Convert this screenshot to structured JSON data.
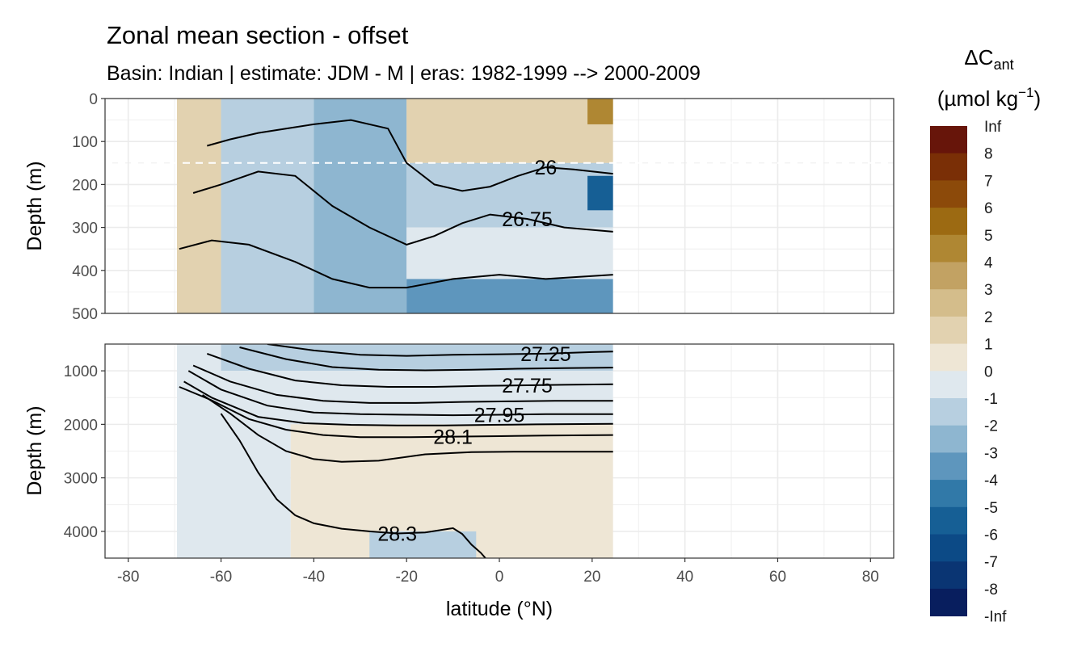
{
  "chart_data": {
    "type": "heatmap",
    "title": "Zonal mean section - offset",
    "subtitle": "Basin: Indian | estimate: JDM - M | eras: 1982-1999 --> 2000-2009",
    "xlabel": "latitude (°N)",
    "ylabel": "Depth (m)",
    "xlim": [
      -85,
      85
    ],
    "x_ticks": [
      -80,
      -60,
      -40,
      -20,
      0,
      20,
      40,
      60,
      80
    ],
    "x_tick_labels": [
      "-80",
      "-60",
      "-40",
      "-20",
      "0",
      "20",
      "40",
      "60",
      "80"
    ],
    "data_lat_range": [
      -69.5,
      24.5
    ],
    "reference_depth_line": 150,
    "panels": [
      {
        "name": "upper",
        "ylim": [
          0,
          500
        ],
        "y_ticks": [
          0,
          100,
          200,
          300,
          400,
          500
        ],
        "y_tick_labels": [
          "0",
          "100",
          "200",
          "300",
          "400",
          "500"
        ],
        "regions": [
          {
            "lat": [
              -69.5,
              -60
            ],
            "depth": [
              0,
              500
            ],
            "value": 1.5
          },
          {
            "lat": [
              -60,
              -40
            ],
            "depth": [
              0,
              500
            ],
            "value": -1.5
          },
          {
            "lat": [
              -40,
              -20
            ],
            "depth": [
              0,
              500
            ],
            "value": -2.2
          },
          {
            "lat": [
              -20,
              24.5
            ],
            "depth": [
              0,
              150
            ],
            "value": 1.2
          },
          {
            "lat": [
              -20,
              24.5
            ],
            "depth": [
              150,
              300
            ],
            "value": -1.3
          },
          {
            "lat": [
              -20,
              24.5
            ],
            "depth": [
              300,
              420
            ],
            "value": -0.6
          },
          {
            "lat": [
              -20,
              24.5
            ],
            "depth": [
              420,
              500
            ],
            "value": -3.1
          },
          {
            "lat": [
              19,
              24.5
            ],
            "depth": [
              0,
              60
            ],
            "value": 4.2
          },
          {
            "lat": [
              19,
              24.5
            ],
            "depth": [
              180,
              260
            ],
            "value": -5.2
          }
        ],
        "contours": [
          {
            "level": "26",
            "label": "26",
            "lat": [
              -63,
              -58,
              -52,
              -46,
              -40,
              -32,
              -24,
              -20,
              -14,
              -8,
              -2,
              4,
              10,
              16,
              24.5
            ],
            "depth": [
              110,
              95,
              80,
              70,
              60,
              50,
              70,
              150,
              200,
              215,
              205,
              180,
              160,
              165,
              175
            ]
          },
          {
            "level": "26.75",
            "label": "26.75",
            "lat": [
              -66,
              -60,
              -52,
              -44,
              -36,
              -28,
              -20,
              -14,
              -8,
              -2,
              6,
              14,
              24.5
            ],
            "depth": [
              220,
              200,
              170,
              180,
              250,
              300,
              340,
              320,
              290,
              270,
              280,
              300,
              310
            ]
          },
          {
            "level": "27",
            "label": "",
            "lat": [
              -69,
              -62,
              -54,
              -44,
              -36,
              -28,
              -20,
              -10,
              0,
              10,
              24.5
            ],
            "depth": [
              350,
              330,
              340,
              380,
              420,
              440,
              440,
              420,
              410,
              420,
              410
            ]
          }
        ]
      },
      {
        "name": "lower",
        "ylim": [
          500,
          4500
        ],
        "y_ticks": [
          1000,
          2000,
          3000,
          4000
        ],
        "y_tick_labels": [
          "1000",
          "2000",
          "3000",
          "4000"
        ],
        "regions": [
          {
            "lat": [
              -69.5,
              -60
            ],
            "depth": [
              500,
              1500
            ],
            "value": -0.5
          },
          {
            "lat": [
              -60,
              24.5
            ],
            "depth": [
              500,
              1000
            ],
            "value": -1.3
          },
          {
            "lat": [
              -60,
              24.5
            ],
            "depth": [
              1000,
              2000
            ],
            "value": -0.6
          },
          {
            "lat": [
              -45,
              24.5
            ],
            "depth": [
              2000,
              4500
            ],
            "value": 0.5
          },
          {
            "lat": [
              -69.5,
              -45
            ],
            "depth": [
              1500,
              4500
            ],
            "value": -0.4
          },
          {
            "lat": [
              -28,
              -5
            ],
            "depth": [
              4000,
              4500
            ],
            "value": -1.4
          }
        ],
        "contours": [
          {
            "level": "27.25",
            "label": "27.25",
            "lat": [
              -50,
              -40,
              -30,
              -20,
              -10,
              0,
              10,
              20,
              24.5
            ],
            "depth": [
              500,
              620,
              700,
              720,
              700,
              690,
              680,
              650,
              640
            ]
          },
          {
            "level": "27.5",
            "label": "",
            "lat": [
              -56,
              -46,
              -36,
              -26,
              -16,
              -6,
              4,
              14,
              24.5
            ],
            "depth": [
              560,
              780,
              930,
              980,
              990,
              980,
              960,
              950,
              940
            ]
          },
          {
            "level": "27.75",
            "label": "27.75",
            "lat": [
              -63,
              -54,
              -44,
              -34,
              -24,
              -14,
              -4,
              6,
              14,
              24.5
            ],
            "depth": [
              680,
              960,
              1180,
              1270,
              1300,
              1300,
              1280,
              1270,
              1260,
              1250
            ]
          },
          {
            "level": "27.9",
            "label": "",
            "lat": [
              -66,
              -58,
              -48,
              -38,
              -28,
              -18,
              -8,
              2,
              12,
              24.5
            ],
            "depth": [
              900,
              1200,
              1450,
              1560,
              1600,
              1600,
              1580,
              1570,
              1560,
              1560
            ]
          },
          {
            "level": "27.95",
            "label": "27.95",
            "lat": [
              -67,
              -60,
              -50,
              -40,
              -30,
              -20,
              -10,
              0,
              10,
              24.5
            ],
            "depth": [
              1000,
              1350,
              1650,
              1780,
              1810,
              1820,
              1830,
              1820,
              1810,
              1810
            ]
          },
          {
            "level": "28.05",
            "label": "",
            "lat": [
              -68,
              -62,
              -52,
              -42,
              -32,
              -22,
              -12,
              -2,
              8,
              24.5
            ],
            "depth": [
              1200,
              1500,
              1860,
              1980,
              2010,
              2020,
              2020,
              2010,
              2000,
              1990
            ]
          },
          {
            "level": "28.1",
            "label": "28.1",
            "lat": [
              -69,
              -62,
              -54,
              -46,
              -38,
              -30,
              -20,
              -10,
              0,
              10,
              24.5
            ],
            "depth": [
              1300,
              1550,
              1900,
              2100,
              2200,
              2240,
              2240,
              2230,
              2220,
              2210,
              2200
            ]
          },
          {
            "level": "28.2",
            "label": "",
            "lat": [
              -64,
              -58,
              -52,
              -46,
              -40,
              -34,
              -26,
              -16,
              -6,
              4,
              14,
              24.5
            ],
            "depth": [
              1450,
              1800,
              2200,
              2500,
              2650,
              2700,
              2680,
              2560,
              2520,
              2510,
              2510,
              2510
            ]
          },
          {
            "level": "28.3",
            "label": "28.3",
            "lat": [
              -60,
              -56,
              -52,
              -48,
              -44,
              -40,
              -34,
              -28,
              -22,
              -16,
              -10,
              -8,
              -6,
              -4,
              -3
            ],
            "depth": [
              1800,
              2300,
              2900,
              3400,
              3700,
              3850,
              3950,
              4000,
              4040,
              4020,
              3940,
              4050,
              4250,
              4400,
              4500
            ]
          }
        ]
      }
    ],
    "legend": {
      "title_main": "ΔC",
      "title_sub": "ant",
      "title_units_pre": "(µmol kg",
      "title_units_sup": "−1",
      "title_units_post": ")",
      "labels": [
        "Inf",
        "8",
        "7",
        "6",
        "5",
        "4",
        "3",
        "2",
        "1",
        "0",
        "-1",
        "-2",
        "-3",
        "-4",
        "-5",
        "-6",
        "-7",
        "-8",
        "-Inf"
      ],
      "colors": [
        "#67150a",
        "#7a2f06",
        "#8c4a0a",
        "#9c6a12",
        "#af8733",
        "#c2a263",
        "#d4bd8b",
        "#e2d2b0",
        "#eee6d5",
        "#dfe8ee",
        "#b7cfe0",
        "#8eb6d0",
        "#5e96bd",
        "#3179a8",
        "#165f95",
        "#0c4a86",
        "#0a3573",
        "#081e5e"
      ]
    },
    "colormap_breaks": [
      8,
      7,
      6,
      5,
      4,
      3,
      2,
      1,
      0,
      -1,
      -2,
      -3,
      -4,
      -5,
      -6,
      -7,
      -8
    ]
  }
}
